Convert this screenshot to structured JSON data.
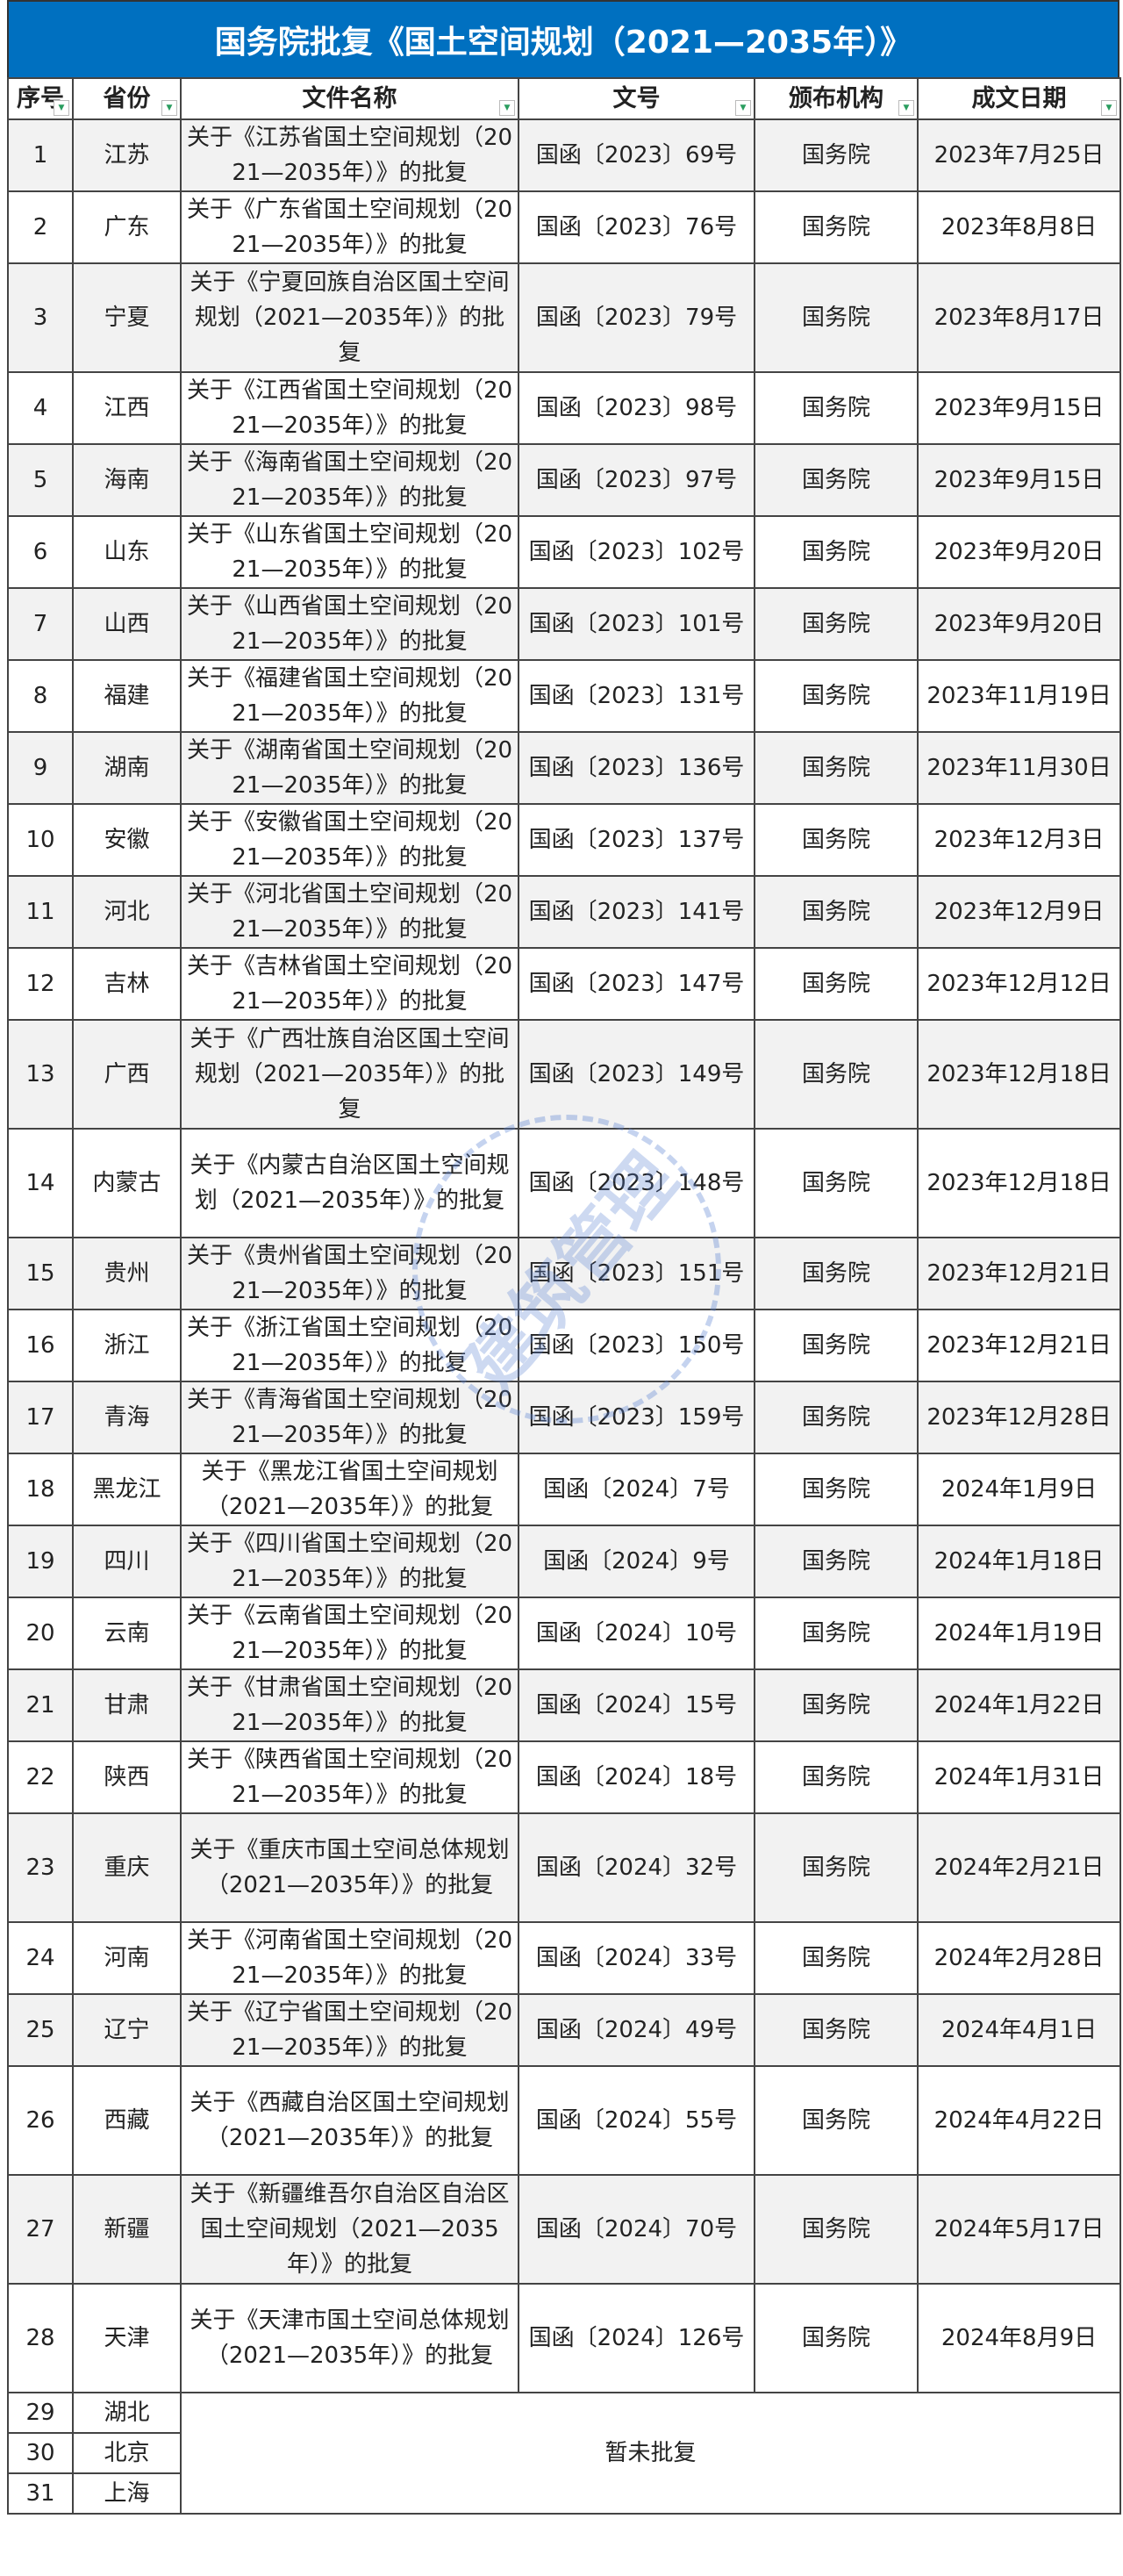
{
  "title": "国务院批复《国土空间规划（2021—2035年）》",
  "headers": [
    "序号",
    "省份",
    "文件名称",
    "文号",
    "颁布机构",
    "成文日期"
  ],
  "filter_icon": "dropdown-filter-icon",
  "rows": [
    {
      "no": "1",
      "prov": "江苏",
      "name": "关于《江苏省国土空间规划（2021—2035年）》的批复",
      "doc": "国函〔2023〕69号",
      "org": "国务院",
      "date": "2023年7月25日",
      "lines": 2
    },
    {
      "no": "2",
      "prov": "广东",
      "name": "关于《广东省国土空间规划（2021—2035年）》的批复",
      "doc": "国函〔2023〕76号",
      "org": "国务院",
      "date": "2023年8月8日",
      "lines": 2
    },
    {
      "no": "3",
      "prov": "宁夏",
      "name": "关于《宁夏回族自治区国土空间规划（2021—2035年）》的批复",
      "doc": "国函〔2023〕79号",
      "org": "国务院",
      "date": "2023年8月17日",
      "lines": 3
    },
    {
      "no": "4",
      "prov": "江西",
      "name": "关于《江西省国土空间规划（2021—2035年）》的批复",
      "doc": "国函〔2023〕98号",
      "org": "国务院",
      "date": "2023年9月15日",
      "lines": 2
    },
    {
      "no": "5",
      "prov": "海南",
      "name": "关于《海南省国土空间规划（2021—2035年）》的批复",
      "doc": "国函〔2023〕97号",
      "org": "国务院",
      "date": "2023年9月15日",
      "lines": 2
    },
    {
      "no": "6",
      "prov": "山东",
      "name": "关于《山东省国土空间规划（2021—2035年）》的批复",
      "doc": "国函〔2023〕102号",
      "org": "国务院",
      "date": "2023年9月20日",
      "lines": 2
    },
    {
      "no": "7",
      "prov": "山西",
      "name": "关于《山西省国土空间规划（2021—2035年）》的批复",
      "doc": "国函〔2023〕101号",
      "org": "国务院",
      "date": "2023年9月20日",
      "lines": 2
    },
    {
      "no": "8",
      "prov": "福建",
      "name": "关于《福建省国土空间规划（2021—2035年）》的批复",
      "doc": "国函〔2023〕131号",
      "org": "国务院",
      "date": "2023年11月19日",
      "lines": 2
    },
    {
      "no": "9",
      "prov": "湖南",
      "name": "关于《湖南省国土空间规划（2021—2035年）》的批复",
      "doc": "国函〔2023〕136号",
      "org": "国务院",
      "date": "2023年11月30日",
      "lines": 2
    },
    {
      "no": "10",
      "prov": "安徽",
      "name": "关于《安徽省国土空间规划（2021—2035年）》的批复",
      "doc": "国函〔2023〕137号",
      "org": "国务院",
      "date": "2023年12月3日",
      "lines": 2
    },
    {
      "no": "11",
      "prov": "河北",
      "name": "关于《河北省国土空间规划（2021—2035年）》的批复",
      "doc": "国函〔2023〕141号",
      "org": "国务院",
      "date": "2023年12月9日",
      "lines": 2
    },
    {
      "no": "12",
      "prov": "吉林",
      "name": "关于《吉林省国土空间规划（2021—2035年）》的批复",
      "doc": "国函〔2023〕147号",
      "org": "国务院",
      "date": "2023年12月12日",
      "lines": 2
    },
    {
      "no": "13",
      "prov": "广西",
      "name": "关于《广西壮族自治区国土空间规划（2021—2035年）》的批复",
      "doc": "国函〔2023〕149号",
      "org": "国务院",
      "date": "2023年12月18日",
      "lines": 3
    },
    {
      "no": "14",
      "prov": "内蒙古",
      "name": "关于《内蒙古自治区国土空间规划（2021—2035年）》的批复",
      "doc": "国函〔2023〕148号",
      "org": "国务院",
      "date": "2023年12月18日",
      "lines": 3
    },
    {
      "no": "15",
      "prov": "贵州",
      "name": "关于《贵州省国土空间规划（2021—2035年）》的批复",
      "doc": "国函〔2023〕151号",
      "org": "国务院",
      "date": "2023年12月21日",
      "lines": 2
    },
    {
      "no": "16",
      "prov": "浙江",
      "name": "关于《浙江省国土空间规划（2021—2035年）》的批复",
      "doc": "国函〔2023〕150号",
      "org": "国务院",
      "date": "2023年12月21日",
      "lines": 2
    },
    {
      "no": "17",
      "prov": "青海",
      "name": "关于《青海省国土空间规划（2021—2035年）》的批复",
      "doc": "国函〔2023〕159号",
      "org": "国务院",
      "date": "2023年12月28日",
      "lines": 2
    },
    {
      "no": "18",
      "prov": "黑龙江",
      "name": "关于《黑龙江省国土空间规划（2021—2035年）》的批复",
      "doc": "国函〔2024〕7号",
      "org": "国务院",
      "date": "2024年1月9日",
      "lines": 2
    },
    {
      "no": "19",
      "prov": "四川",
      "name": "关于《四川省国土空间规划（2021—2035年）》的批复",
      "doc": "国函〔2024〕9号",
      "org": "国务院",
      "date": "2024年1月18日",
      "lines": 2
    },
    {
      "no": "20",
      "prov": "云南",
      "name": "关于《云南省国土空间规划（2021—2035年）》的批复",
      "doc": "国函〔2024〕10号",
      "org": "国务院",
      "date": "2024年1月19日",
      "lines": 2
    },
    {
      "no": "21",
      "prov": "甘肃",
      "name": "关于《甘肃省国土空间规划（2021—2035年）》的批复",
      "doc": "国函〔2024〕15号",
      "org": "国务院",
      "date": "2024年1月22日",
      "lines": 2
    },
    {
      "no": "22",
      "prov": "陕西",
      "name": "关于《陕西省国土空间规划（2021—2035年）》的批复",
      "doc": "国函〔2024〕18号",
      "org": "国务院",
      "date": "2024年1月31日",
      "lines": 2
    },
    {
      "no": "23",
      "prov": "重庆",
      "name": "关于《重庆市国土空间总体规划（2021—2035年）》的批复",
      "doc": "国函〔2024〕32号",
      "org": "国务院",
      "date": "2024年2月21日",
      "lines": 3
    },
    {
      "no": "24",
      "prov": "河南",
      "name": "关于《河南省国土空间规划（2021—2035年）》的批复",
      "doc": "国函〔2024〕33号",
      "org": "国务院",
      "date": "2024年2月28日",
      "lines": 2
    },
    {
      "no": "25",
      "prov": "辽宁",
      "name": "关于《辽宁省国土空间规划（2021—2035年）》的批复",
      "doc": "国函〔2024〕49号",
      "org": "国务院",
      "date": "2024年4月1日",
      "lines": 2
    },
    {
      "no": "26",
      "prov": "西藏",
      "name": "关于《西藏自治区国土空间规划（2021—2035年）》的批复",
      "doc": "国函〔2024〕55号",
      "org": "国务院",
      "date": "2024年4月22日",
      "lines": 3
    },
    {
      "no": "27",
      "prov": "新疆",
      "name": "关于《新疆维吾尔自治区自治区国土空间规划（2021—2035年）》的批复",
      "doc": "国函〔2024〕70号",
      "org": "国务院",
      "date": "2024年5月17日",
      "lines": 3
    },
    {
      "no": "28",
      "prov": "天津",
      "name": "关于《天津市国土空间总体规划（2021—2035年）》的批复",
      "doc": "国函〔2024〕126号",
      "org": "国务院",
      "date": "2024年8月9日",
      "lines": 3
    }
  ],
  "pending": {
    "rows": [
      {
        "no": "29",
        "prov": "湖北"
      },
      {
        "no": "30",
        "prov": "北京"
      },
      {
        "no": "31",
        "prov": "上海"
      }
    ],
    "status": "暂未批复"
  },
  "watermark": "建筑管理",
  "colors": {
    "title_bg": "#0070c0",
    "title_text": "#ffffff",
    "filter_arrow": "#2a9d5f",
    "stripe": "#f2f2f2"
  }
}
